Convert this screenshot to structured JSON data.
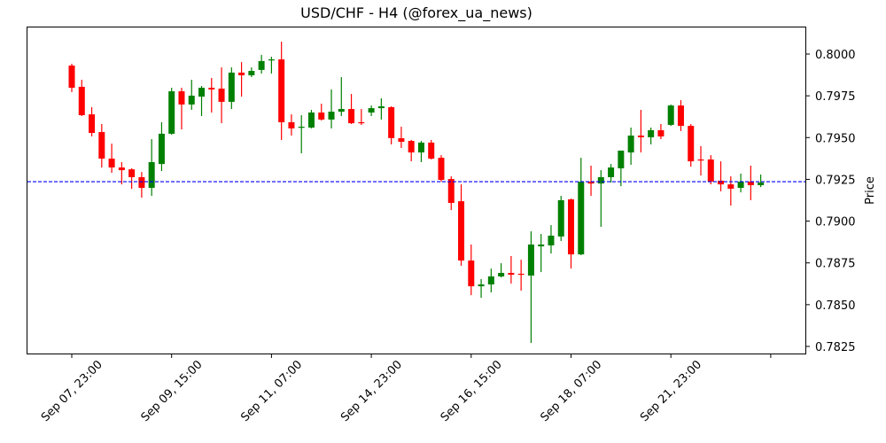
{
  "chart_data": {
    "type": "candlestick",
    "title": "USD/CHF - H4 (@forex_ua_news)",
    "xlabel": "",
    "ylabel": "Price",
    "ylim": [
      0.782,
      0.8019
    ],
    "yticks": [
      "0.7825",
      "0.7850",
      "0.7875",
      "0.7900",
      "0.7925",
      "0.7950",
      "0.7975",
      "0.8000"
    ],
    "xticks": [
      {
        "index": 0,
        "label": "Sep 07, 23:00"
      },
      {
        "index": 10,
        "label": "Sep 09, 15:00"
      },
      {
        "index": 20,
        "label": "Sep 11, 07:00"
      },
      {
        "index": 30,
        "label": "Sep 14, 23:00"
      },
      {
        "index": 40,
        "label": "Sep 16, 15:00"
      },
      {
        "index": 50,
        "label": "Sep 18, 07:00"
      },
      {
        "index": 60,
        "label": "Sep 21, 23:00"
      },
      {
        "index": 70,
        "label": ""
      }
    ],
    "reference_line": {
      "value": 0.79236,
      "color": "#0000ff",
      "style": "dashed"
    },
    "colors": {
      "up": "#008000",
      "down": "#ff0000"
    },
    "grid": false,
    "columns": [
      "open",
      "high",
      "low",
      "close"
    ],
    "candles": [
      [
        0.79931,
        0.79942,
        0.79772,
        0.79798
      ],
      [
        0.79804,
        0.79846,
        0.79629,
        0.79634
      ],
      [
        0.79639,
        0.79682,
        0.79507,
        0.79528
      ],
      [
        0.79533,
        0.79581,
        0.79321,
        0.79374
      ],
      [
        0.79374,
        0.79464,
        0.79289,
        0.79321
      ],
      [
        0.79321,
        0.79353,
        0.7922,
        0.79305
      ],
      [
        0.7931,
        0.79316,
        0.79193,
        0.79263
      ],
      [
        0.79263,
        0.79294,
        0.7914,
        0.79199
      ],
      [
        0.79199,
        0.79491,
        0.79151,
        0.79353
      ],
      [
        0.79342,
        0.79592,
        0.793,
        0.79523
      ],
      [
        0.79523,
        0.79798,
        0.79517,
        0.79777
      ],
      [
        0.79777,
        0.79798,
        0.79549,
        0.79698
      ],
      [
        0.79698,
        0.79846,
        0.79666,
        0.79751
      ],
      [
        0.79745,
        0.79809,
        0.79629,
        0.79798
      ],
      [
        0.79798,
        0.79857,
        0.7965,
        0.79788
      ],
      [
        0.79793,
        0.7992,
        0.79586,
        0.79714
      ],
      [
        0.79714,
        0.7992,
        0.79671,
        0.79889
      ],
      [
        0.79889,
        0.79952,
        0.79745,
        0.79873
      ],
      [
        0.79873,
        0.7992,
        0.79862,
        0.79899
      ],
      [
        0.79905,
        0.79995,
        0.79883,
        0.79958
      ],
      [
        0.79963,
        0.79984,
        0.79883,
        0.79968
      ],
      [
        0.79968,
        0.80074,
        0.79486,
        0.79592
      ],
      [
        0.79592,
        0.79639,
        0.79512,
        0.79555
      ],
      [
        0.7956,
        0.79634,
        0.79406,
        0.79565
      ],
      [
        0.7956,
        0.79666,
        0.79555,
        0.7965
      ],
      [
        0.7965,
        0.79703,
        0.79602,
        0.79608
      ],
      [
        0.79608,
        0.79788,
        0.79555,
        0.79655
      ],
      [
        0.79655,
        0.79862,
        0.79629,
        0.79671
      ],
      [
        0.79671,
        0.79761,
        0.79581,
        0.79586
      ],
      [
        0.79592,
        0.79671,
        0.79576,
        0.79586
      ],
      [
        0.7965,
        0.79692,
        0.79629,
        0.79676
      ],
      [
        0.79676,
        0.79735,
        0.79608,
        0.79687
      ],
      [
        0.79682,
        0.79687,
        0.79459,
        0.79497
      ],
      [
        0.79496,
        0.79565,
        0.79438,
        0.79475
      ],
      [
        0.7948,
        0.79486,
        0.79358,
        0.79411
      ],
      [
        0.79411,
        0.7948,
        0.79353,
        0.7947
      ],
      [
        0.7947,
        0.79486,
        0.79369,
        0.79374
      ],
      [
        0.79379,
        0.79395,
        0.79236,
        0.79247
      ],
      [
        0.79252,
        0.79268,
        0.79066,
        0.79109
      ],
      [
        0.79119,
        0.7922,
        0.78733,
        0.78764
      ],
      [
        0.78764,
        0.7886,
        0.78557,
        0.7861
      ],
      [
        0.7861,
        0.78653,
        0.78541,
        0.78621
      ],
      [
        0.78621,
        0.78716,
        0.78573,
        0.78669
      ],
      [
        0.78669,
        0.78748,
        0.78663,
        0.7869
      ],
      [
        0.7869,
        0.78791,
        0.78626,
        0.78679
      ],
      [
        0.78685,
        0.78769,
        0.78584,
        0.78679
      ],
      [
        0.78674,
        0.78939,
        0.78271,
        0.7886
      ],
      [
        0.78849,
        0.78923,
        0.78695,
        0.7886
      ],
      [
        0.78855,
        0.78976,
        0.78806,
        0.78913
      ],
      [
        0.78908,
        0.79151,
        0.78881,
        0.79125
      ],
      [
        0.7913,
        0.79135,
        0.78716,
        0.78801
      ],
      [
        0.78801,
        0.79379,
        0.78796,
        0.79236
      ],
      [
        0.79236,
        0.79332,
        0.79151,
        0.79225
      ],
      [
        0.79225,
        0.79305,
        0.78966,
        0.79263
      ],
      [
        0.79263,
        0.79342,
        0.79231,
        0.79321
      ],
      [
        0.79316,
        0.79422,
        0.79209,
        0.79422
      ],
      [
        0.79411,
        0.7956,
        0.79337,
        0.79512
      ],
      [
        0.79512,
        0.79666,
        0.79411,
        0.79502
      ],
      [
        0.79502,
        0.7956,
        0.79459,
        0.79544
      ],
      [
        0.79544,
        0.79581,
        0.79491,
        0.79507
      ],
      [
        0.79576,
        0.79698,
        0.7957,
        0.79692
      ],
      [
        0.79692,
        0.79724,
        0.79539,
        0.7957
      ],
      [
        0.7957,
        0.79581,
        0.79326,
        0.79358
      ],
      [
        0.79369,
        0.79449,
        0.79273,
        0.79363
      ],
      [
        0.79369,
        0.79395,
        0.7922,
        0.79236
      ],
      [
        0.79242,
        0.79358,
        0.79178,
        0.7922
      ],
      [
        0.7922,
        0.79268,
        0.79093,
        0.79194
      ],
      [
        0.79199,
        0.79284,
        0.79172,
        0.79236
      ],
      [
        0.79236,
        0.79332,
        0.79125,
        0.79215
      ],
      [
        0.79215,
        0.79279,
        0.79204,
        0.79231
      ]
    ]
  }
}
